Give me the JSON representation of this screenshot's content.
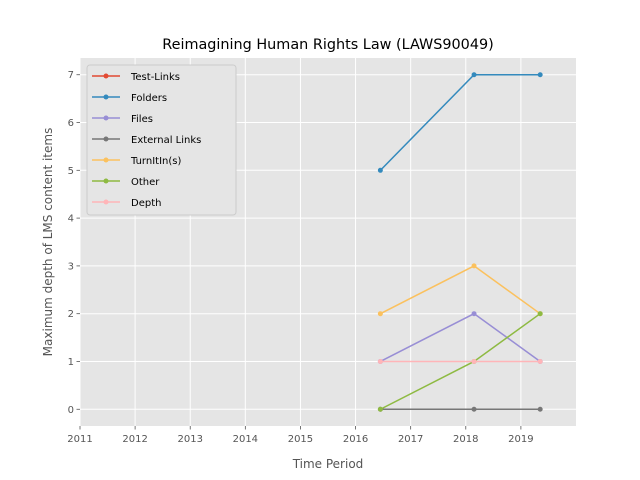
{
  "chart_data": {
    "type": "line",
    "title": "Reimagining Human Rights Law (LAWS90049)",
    "xlabel": "Time Period",
    "ylabel": "Maximum depth of LMS content items",
    "xlim": [
      2011,
      2020
    ],
    "ylim": [
      -0.35,
      7.35
    ],
    "x_ticks": [
      "2011",
      "2012",
      "2013",
      "2014",
      "2015",
      "2016",
      "2017",
      "2018",
      "2019"
    ],
    "y_ticks": [
      "0",
      "1",
      "2",
      "3",
      "4",
      "5",
      "6",
      "7"
    ],
    "x": [
      2016.45,
      2018.15,
      2019.35
    ],
    "grid": true,
    "legend_position": "upper-left",
    "series": [
      {
        "name": "Test-Links",
        "color": "#E24A33",
        "values": [
          null,
          null,
          null
        ]
      },
      {
        "name": "Folders",
        "color": "#348ABD",
        "values": [
          5,
          7,
          7
        ]
      },
      {
        "name": "Files",
        "color": "#988ED5",
        "values": [
          1,
          2,
          1
        ]
      },
      {
        "name": "External Links",
        "color": "#777777",
        "values": [
          0,
          0,
          0
        ]
      },
      {
        "name": "TurnItIn(s)",
        "color": "#FBC15E",
        "values": [
          2,
          3,
          2
        ]
      },
      {
        "name": "Other",
        "color": "#8EBA42",
        "values": [
          0,
          1,
          2
        ]
      },
      {
        "name": "Depth",
        "color": "#FFB5B8",
        "values": [
          1,
          1,
          1
        ]
      }
    ]
  }
}
